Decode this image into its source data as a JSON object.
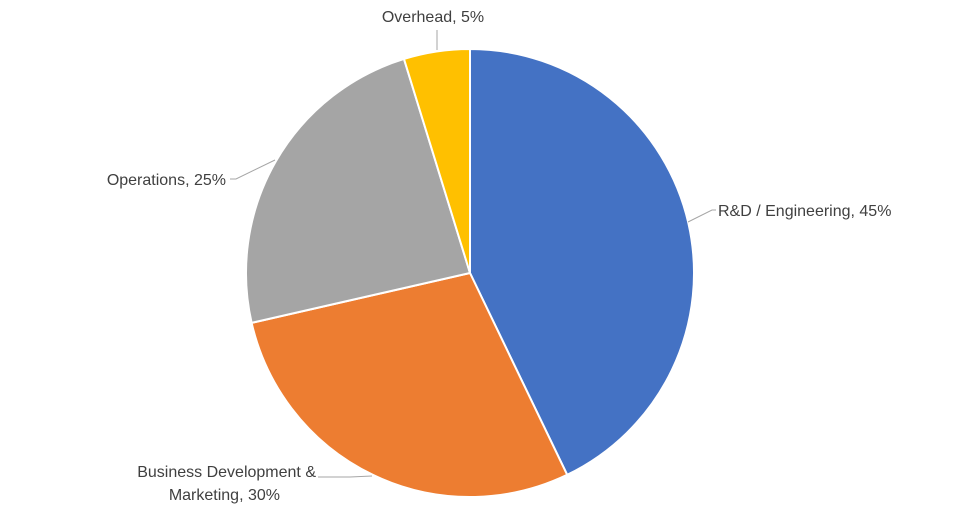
{
  "chart_data": {
    "type": "pie",
    "slices": [
      {
        "name": "R&D / Engineering",
        "value": 45,
        "color": "#4472c4",
        "label": "R&D / Engineering, 45%"
      },
      {
        "name": "Business Development & Marketing",
        "value": 30,
        "color": "#ed7d31",
        "label_lines": [
          "Business Development &",
          "Marketing, 30%"
        ]
      },
      {
        "name": "Operations",
        "value": 25,
        "color": "#a5a5a5",
        "label": "Operations, 25%"
      },
      {
        "name": "Overhead",
        "value": 5,
        "color": "#ffc000",
        "label": "Overhead, 5%"
      }
    ],
    "start_angle_deg": 0,
    "direction": "clockwise",
    "slice_border_color": "#ffffff",
    "legend": "none",
    "data_labels": "outside with leader lines"
  }
}
